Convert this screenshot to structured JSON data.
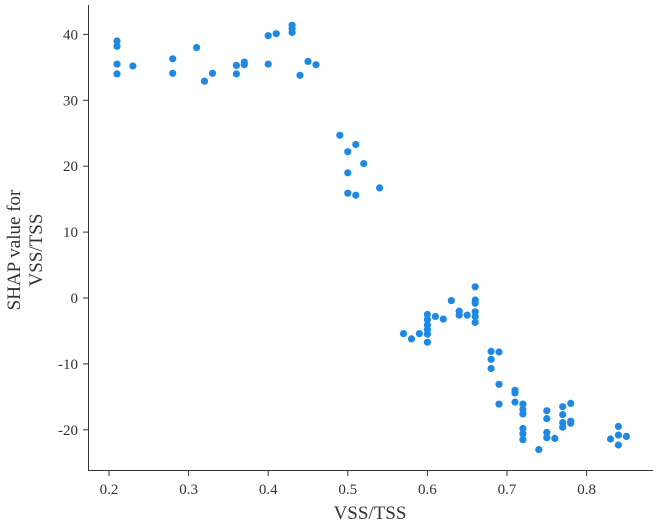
{
  "chart_data": {
    "type": "scatter",
    "title": "",
    "xlabel": "VSS/TSS",
    "ylabel_lines": [
      "SHAP value for",
      "VSS/TSS"
    ],
    "xlim": [
      0.175,
      0.885
    ],
    "ylim": [
      -25.8,
      44.5
    ],
    "xticks": [
      0.2,
      0.3,
      0.4,
      0.5,
      0.6,
      0.7,
      0.8
    ],
    "xtick_labels": [
      "0.2",
      "0.3",
      "0.4",
      "0.5",
      "0.6",
      "0.7",
      "0.8"
    ],
    "yticks": [
      -20,
      -10,
      0,
      10,
      20,
      30,
      40
    ],
    "ytick_labels": [
      "-20",
      "-10",
      "0",
      "10",
      "20",
      "30",
      "40"
    ],
    "grid": false,
    "color": "#1e88e5",
    "points": [
      [
        0.21,
        39.0
      ],
      [
        0.21,
        38.2
      ],
      [
        0.21,
        35.5
      ],
      [
        0.21,
        34.0
      ],
      [
        0.23,
        35.2
      ],
      [
        0.28,
        36.3
      ],
      [
        0.28,
        34.1
      ],
      [
        0.31,
        38.0
      ],
      [
        0.32,
        32.9
      ],
      [
        0.33,
        34.1
      ],
      [
        0.36,
        35.3
      ],
      [
        0.36,
        34.0
      ],
      [
        0.37,
        35.8
      ],
      [
        0.37,
        35.4
      ],
      [
        0.4,
        39.8
      ],
      [
        0.41,
        40.1
      ],
      [
        0.43,
        41.4
      ],
      [
        0.43,
        40.9
      ],
      [
        0.43,
        40.3
      ],
      [
        0.4,
        35.5
      ],
      [
        0.44,
        33.8
      ],
      [
        0.45,
        35.9
      ],
      [
        0.46,
        35.4
      ],
      [
        0.49,
        24.7
      ],
      [
        0.51,
        23.3
      ],
      [
        0.5,
        22.2
      ],
      [
        0.52,
        20.4
      ],
      [
        0.5,
        19.0
      ],
      [
        0.5,
        15.9
      ],
      [
        0.51,
        15.6
      ],
      [
        0.54,
        16.7
      ],
      [
        0.66,
        1.7
      ],
      [
        0.63,
        -0.4
      ],
      [
        0.66,
        -0.3
      ],
      [
        0.66,
        -0.8
      ],
      [
        0.64,
        -2.0
      ],
      [
        0.64,
        -2.6
      ],
      [
        0.65,
        -2.6
      ],
      [
        0.66,
        -2.1
      ],
      [
        0.66,
        -2.8
      ],
      [
        0.66,
        -3.7
      ],
      [
        0.61,
        -2.8
      ],
      [
        0.62,
        -3.2
      ],
      [
        0.6,
        -2.5
      ],
      [
        0.6,
        -3.3
      ],
      [
        0.6,
        -4.1
      ],
      [
        0.6,
        -4.8
      ],
      [
        0.6,
        -5.5
      ],
      [
        0.6,
        -6.7
      ],
      [
        0.57,
        -5.4
      ],
      [
        0.58,
        -6.2
      ],
      [
        0.59,
        -5.4
      ],
      [
        0.68,
        -8.1
      ],
      [
        0.69,
        -8.2
      ],
      [
        0.68,
        -9.3
      ],
      [
        0.68,
        -10.7
      ],
      [
        0.69,
        -13.1
      ],
      [
        0.69,
        -16.1
      ],
      [
        0.71,
        -14.0
      ],
      [
        0.71,
        -14.4
      ],
      [
        0.71,
        -15.8
      ],
      [
        0.72,
        -16.1
      ],
      [
        0.72,
        -16.9
      ],
      [
        0.72,
        -17.6
      ],
      [
        0.72,
        -19.8
      ],
      [
        0.72,
        -20.6
      ],
      [
        0.72,
        -21.5
      ],
      [
        0.74,
        -23.0
      ],
      [
        0.75,
        -17.1
      ],
      [
        0.75,
        -18.3
      ],
      [
        0.75,
        -20.4
      ],
      [
        0.75,
        -21.2
      ],
      [
        0.76,
        -21.3
      ],
      [
        0.77,
        -16.5
      ],
      [
        0.77,
        -17.7
      ],
      [
        0.77,
        -18.9
      ],
      [
        0.77,
        -19.6
      ],
      [
        0.78,
        -16.0
      ],
      [
        0.78,
        -18.7
      ],
      [
        0.78,
        -19.0
      ],
      [
        0.83,
        -21.4
      ],
      [
        0.84,
        -19.5
      ],
      [
        0.84,
        -20.8
      ],
      [
        0.84,
        -22.3
      ],
      [
        0.85,
        -21.0
      ]
    ]
  }
}
